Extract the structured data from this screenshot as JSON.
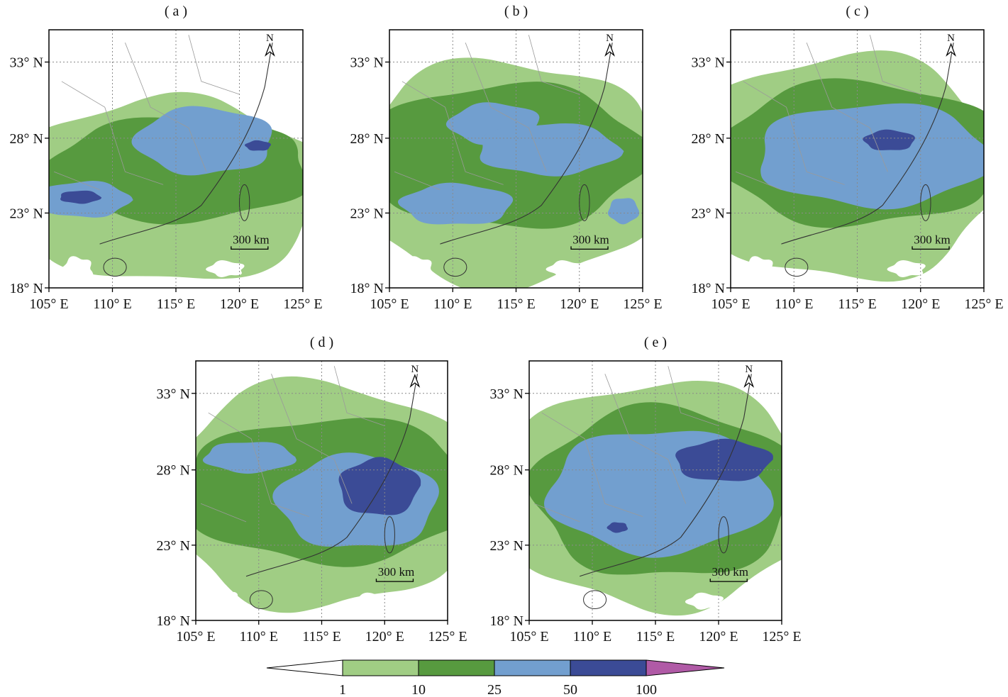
{
  "panels": [
    {
      "label": "( a )"
    },
    {
      "label": "( b )"
    },
    {
      "label": "( c )"
    },
    {
      "label": "( d )"
    },
    {
      "label": "( e )"
    }
  ],
  "lat_labels": [
    "33° N",
    "28° N",
    "23° N",
    "18° N"
  ],
  "lon_labels": [
    "105° E",
    "110° E",
    "115° E",
    "120° E",
    "125° E"
  ],
  "scale_bar_label": "300 km",
  "north_label": "N",
  "colorbar": {
    "ticks": [
      "1",
      "10",
      "25",
      "50",
      "100"
    ],
    "colors": [
      "#ffffff",
      "#a0cd84",
      "#579a3f",
      "#729fcf",
      "#3b4b96",
      "#b05aa6"
    ]
  }
}
